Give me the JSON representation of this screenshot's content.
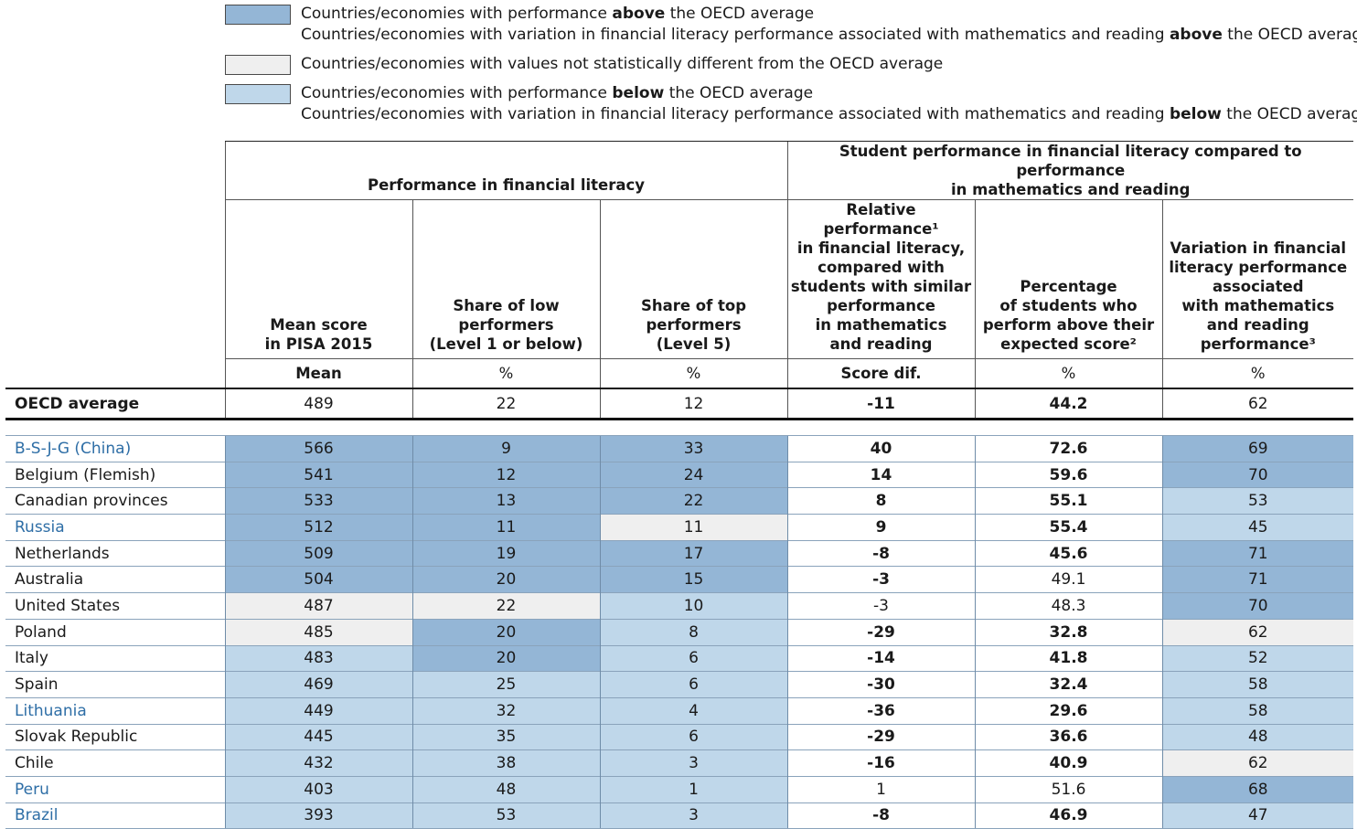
{
  "legend": {
    "above_line1_pre": "Countries/economies with performance ",
    "above_line1_bold": "above",
    "above_line1_post": " the OECD average",
    "above_line2_pre": "Countries/economies with variation in financial literacy performance associated with mathematics and reading ",
    "above_line2_bold": "above",
    "above_line2_post": " the OECD average",
    "same_line": "Countries/economies with values not statistically different from the OECD average",
    "below_line1_pre": "Countries/economies with performance ",
    "below_line1_bold": "below",
    "below_line1_post": " the OECD average",
    "below_line2_pre": "Countries/economies with variation in financial literacy performance associated with mathematics and reading ",
    "below_line2_bold": "below",
    "below_line2_post": " the OECD average",
    "colors": {
      "above": "#94b6d6",
      "same": "#efefef",
      "below": "#bfd7ea"
    }
  },
  "header": {
    "group1": "Performance in financial literacy",
    "group2_l1": "Student performance in financial literacy compared to performance",
    "group2_l2": "in mathematics and reading",
    "col1": [
      "Mean score",
      "in PISA 2015"
    ],
    "col2": [
      "Share of low",
      "performers",
      "(Level 1 or below)"
    ],
    "col3": [
      "Share of top",
      "performers",
      "(Level 5)"
    ],
    "col4": [
      "Relative performance¹",
      "in financial literacy,",
      "compared with",
      "students with similar",
      "performance",
      "in mathematics",
      "and reading"
    ],
    "col5": [
      "Percentage",
      "of students who",
      "perform above their",
      "expected score²"
    ],
    "col6": [
      "Variation in financial",
      "literacy performance",
      "associated",
      "with mathematics",
      "and reading",
      "performance³"
    ],
    "units": [
      "Mean",
      "%",
      "%",
      "Score dif.",
      "%",
      "%"
    ]
  },
  "oecd": {
    "label": "OECD average",
    "values": [
      "489",
      "22",
      "12",
      "-11",
      "44.2",
      "62"
    ]
  },
  "rows": [
    {
      "name": "B-S-J-G (China)",
      "partner": true,
      "v": [
        "566",
        "9",
        "33",
        "40",
        "72.6",
        "69"
      ],
      "c": [
        "above",
        "above",
        "above",
        "white",
        "white",
        "above"
      ],
      "b": [
        false,
        false,
        false,
        true,
        true,
        false
      ]
    },
    {
      "name": "Belgium (Flemish)",
      "partner": false,
      "v": [
        "541",
        "12",
        "24",
        "14",
        "59.6",
        "70"
      ],
      "c": [
        "above",
        "above",
        "above",
        "white",
        "white",
        "above"
      ],
      "b": [
        false,
        false,
        false,
        true,
        true,
        false
      ]
    },
    {
      "name": "Canadian provinces",
      "partner": false,
      "v": [
        "533",
        "13",
        "22",
        "8",
        "55.1",
        "53"
      ],
      "c": [
        "above",
        "above",
        "above",
        "white",
        "white",
        "below"
      ],
      "b": [
        false,
        false,
        false,
        true,
        true,
        false
      ]
    },
    {
      "name": "Russia",
      "partner": true,
      "v": [
        "512",
        "11",
        "11",
        "9",
        "55.4",
        "45"
      ],
      "c": [
        "above",
        "above",
        "same",
        "white",
        "white",
        "below"
      ],
      "b": [
        false,
        false,
        false,
        true,
        true,
        false
      ]
    },
    {
      "name": "Netherlands",
      "partner": false,
      "v": [
        "509",
        "19",
        "17",
        "-8",
        "45.6",
        "71"
      ],
      "c": [
        "above",
        "above",
        "above",
        "white",
        "white",
        "above"
      ],
      "b": [
        false,
        false,
        false,
        true,
        true,
        false
      ]
    },
    {
      "name": "Australia",
      "partner": false,
      "v": [
        "504",
        "20",
        "15",
        "-3",
        "49.1",
        "71"
      ],
      "c": [
        "above",
        "above",
        "above",
        "white",
        "white",
        "above"
      ],
      "b": [
        false,
        false,
        false,
        true,
        false,
        false
      ]
    },
    {
      "name": "United States",
      "partner": false,
      "v": [
        "487",
        "22",
        "10",
        "-3",
        "48.3",
        "70"
      ],
      "c": [
        "same",
        "same",
        "below",
        "white",
        "white",
        "above"
      ],
      "b": [
        false,
        false,
        false,
        false,
        false,
        false
      ]
    },
    {
      "name": "Poland",
      "partner": false,
      "v": [
        "485",
        "20",
        "8",
        "-29",
        "32.8",
        "62"
      ],
      "c": [
        "same",
        "above",
        "below",
        "white",
        "white",
        "same"
      ],
      "b": [
        false,
        false,
        false,
        true,
        true,
        false
      ]
    },
    {
      "name": "Italy",
      "partner": false,
      "v": [
        "483",
        "20",
        "6",
        "-14",
        "41.8",
        "52"
      ],
      "c": [
        "below",
        "above",
        "below",
        "white",
        "white",
        "below"
      ],
      "b": [
        false,
        false,
        false,
        true,
        true,
        false
      ]
    },
    {
      "name": "Spain",
      "partner": false,
      "v": [
        "469",
        "25",
        "6",
        "-30",
        "32.4",
        "58"
      ],
      "c": [
        "below",
        "below",
        "below",
        "white",
        "white",
        "below"
      ],
      "b": [
        false,
        false,
        false,
        true,
        true,
        false
      ]
    },
    {
      "name": "Lithuania",
      "partner": true,
      "v": [
        "449",
        "32",
        "4",
        "-36",
        "29.6",
        "58"
      ],
      "c": [
        "below",
        "below",
        "below",
        "white",
        "white",
        "below"
      ],
      "b": [
        false,
        false,
        false,
        true,
        true,
        false
      ]
    },
    {
      "name": "Slovak Republic",
      "partner": false,
      "v": [
        "445",
        "35",
        "6",
        "-29",
        "36.6",
        "48"
      ],
      "c": [
        "below",
        "below",
        "below",
        "white",
        "white",
        "below"
      ],
      "b": [
        false,
        false,
        false,
        true,
        true,
        false
      ]
    },
    {
      "name": "Chile",
      "partner": false,
      "v": [
        "432",
        "38",
        "3",
        "-16",
        "40.9",
        "62"
      ],
      "c": [
        "below",
        "below",
        "below",
        "white",
        "white",
        "same"
      ],
      "b": [
        false,
        false,
        false,
        true,
        true,
        false
      ]
    },
    {
      "name": "Peru",
      "partner": true,
      "v": [
        "403",
        "48",
        "1",
        "1",
        "51.6",
        "68"
      ],
      "c": [
        "below",
        "below",
        "below",
        "white",
        "white",
        "above"
      ],
      "b": [
        false,
        false,
        false,
        false,
        false,
        false
      ]
    },
    {
      "name": "Brazil",
      "partner": true,
      "v": [
        "393",
        "53",
        "3",
        "-8",
        "46.9",
        "47"
      ],
      "c": [
        "below",
        "below",
        "below",
        "white",
        "white",
        "below"
      ],
      "b": [
        false,
        false,
        false,
        true,
        true,
        false
      ]
    }
  ]
}
